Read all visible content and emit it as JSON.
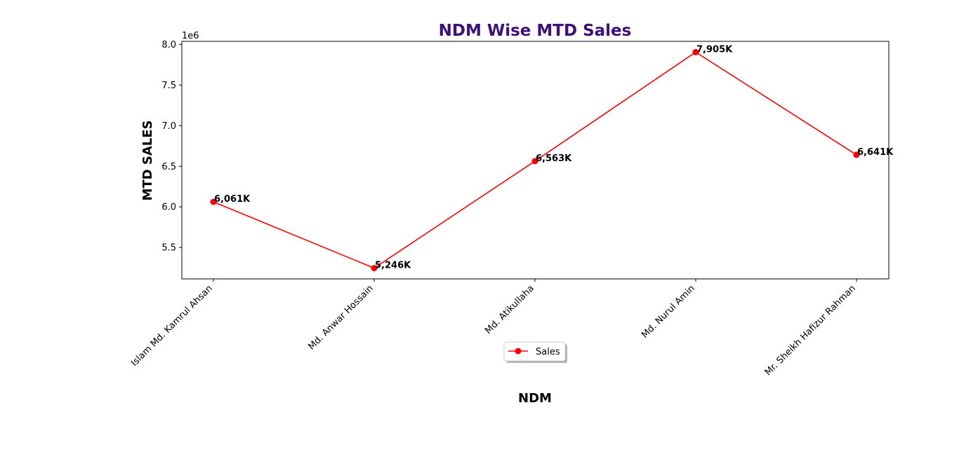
{
  "chart_data": {
    "type": "line",
    "title": "NDM Wise MTD Sales",
    "xlabel": "NDM",
    "ylabel": "MTD SALES",
    "y_offset_label": "1e6",
    "categories": [
      "Islam Md. Kamrul Ahsan",
      "Md. Anwar Hossain",
      "Md. Atikullaha",
      "Md. Nurul Amin",
      "Mr. Sheikh Hafizur Rahman"
    ],
    "series": [
      {
        "name": "Sales",
        "values": [
          6061000,
          5246000,
          6563000,
          7905000,
          6641000
        ],
        "data_labels": [
          "6,061K",
          "5,246K",
          "6,563K",
          "7,905K",
          "6,641K"
        ],
        "color": "#ff0000",
        "marker": "circle"
      }
    ],
    "yticks": [
      {
        "value": 5500000,
        "label": "5.5"
      },
      {
        "value": 6000000,
        "label": "6.0"
      },
      {
        "value": 6500000,
        "label": "6.5"
      },
      {
        "value": 7000000,
        "label": "7.0"
      },
      {
        "value": 7500000,
        "label": "7.5"
      },
      {
        "value": 8000000,
        "label": "8.0"
      }
    ],
    "ylim": [
      5113000,
      8038000
    ],
    "grid": false,
    "legend_position": "bottom-center",
    "title_color": "#3f0f7a"
  }
}
